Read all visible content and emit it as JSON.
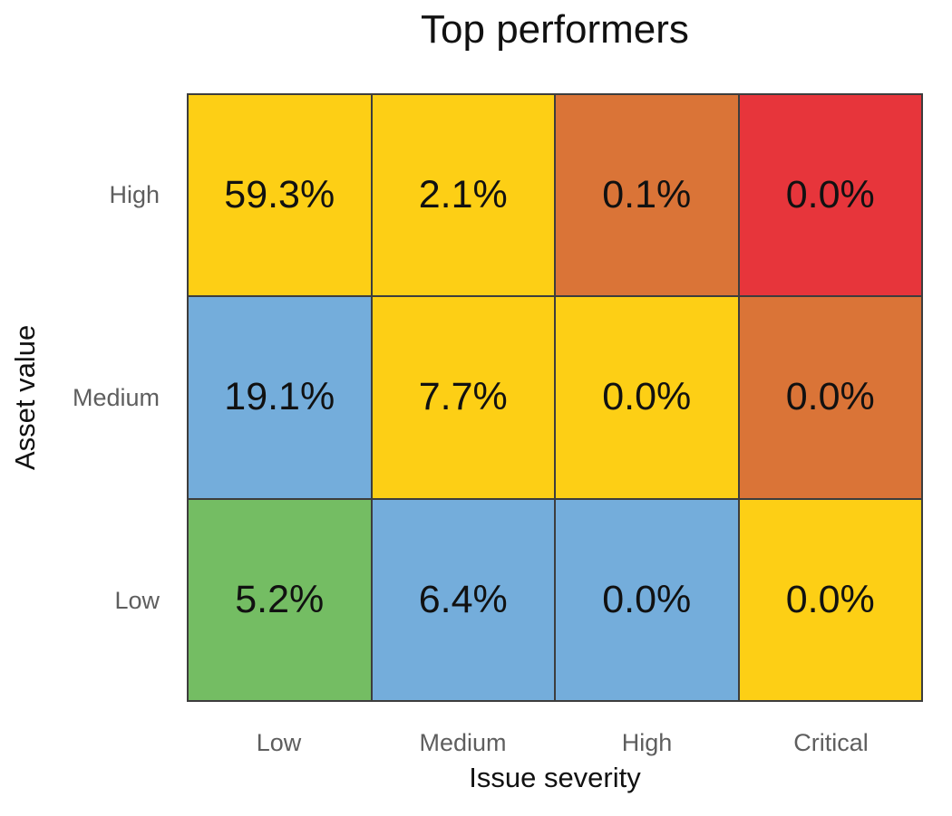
{
  "chart_data": {
    "type": "heatmap",
    "title": "Top performers",
    "xlabel": "Issue severity",
    "ylabel": "Asset value",
    "x_categories": [
      "Low",
      "Medium",
      "High",
      "Critical"
    ],
    "y_categories": [
      "High",
      "Medium",
      "Low"
    ],
    "values": [
      [
        59.3,
        2.1,
        0.1,
        0.0
      ],
      [
        19.1,
        7.7,
        0.0,
        0.0
      ],
      [
        5.2,
        6.4,
        0.0,
        0.0
      ]
    ],
    "value_unit": "%",
    "legend": "none",
    "grid_color": "#3d3d3d",
    "text_color": "#111111",
    "tick_color": "#5e5e5e",
    "palette": {
      "green": "#74BD63",
      "blue": "#74ADDB",
      "yellow": "#FDCF15",
      "orange": "#DA7437",
      "red": "#E7353B"
    },
    "cells": [
      {
        "row": "High",
        "col": "Low",
        "label": "59.3%",
        "color": "#FDCF15"
      },
      {
        "row": "High",
        "col": "Medium",
        "label": "2.1%",
        "color": "#FDCF15"
      },
      {
        "row": "High",
        "col": "High",
        "label": "0.1%",
        "color": "#DA7437"
      },
      {
        "row": "High",
        "col": "Critical",
        "label": "0.0%",
        "color": "#E7353B"
      },
      {
        "row": "Medium",
        "col": "Low",
        "label": "19.1%",
        "color": "#74ADDB"
      },
      {
        "row": "Medium",
        "col": "Medium",
        "label": "7.7%",
        "color": "#FDCF15"
      },
      {
        "row": "Medium",
        "col": "High",
        "label": "0.0%",
        "color": "#FDCF15"
      },
      {
        "row": "Medium",
        "col": "Critical",
        "label": "0.0%",
        "color": "#DA7437"
      },
      {
        "row": "Low",
        "col": "Low",
        "label": "5.2%",
        "color": "#74BD63"
      },
      {
        "row": "Low",
        "col": "Medium",
        "label": "6.4%",
        "color": "#74ADDB"
      },
      {
        "row": "Low",
        "col": "High",
        "label": "0.0%",
        "color": "#74ADDB"
      },
      {
        "row": "Low",
        "col": "Critical",
        "label": "0.0%",
        "color": "#FDCF15"
      }
    ]
  }
}
